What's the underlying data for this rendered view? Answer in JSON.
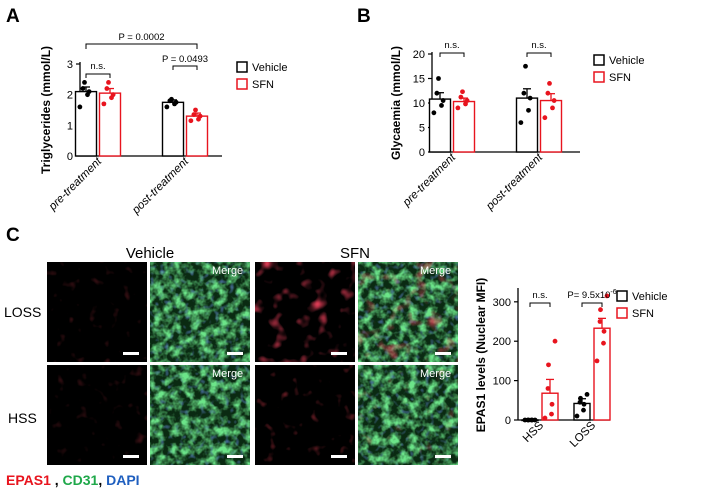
{
  "panels": {
    "a": "A",
    "b": "B",
    "c": "C"
  },
  "legend": {
    "vehicle": "Vehicle",
    "sfn": "SFN"
  },
  "colors": {
    "vehicle": "#000000",
    "sfn": "#e8141e",
    "epas1": "#e8141e",
    "cd31": "#1fa84a",
    "dapi": "#1f5fbf"
  },
  "microscopy": {
    "col_vehicle": "Vehicle",
    "col_sfn": "SFN",
    "row_loss": "LOSS",
    "row_hss": "HSS",
    "merge_label": "Merge",
    "stain_epas1": "EPAS1",
    "stain_cd31": "CD31",
    "stain_dapi": "DAPI",
    "stain_sep1": " , ",
    "stain_sep2": ", "
  },
  "chart_data": [
    {
      "id": "A",
      "type": "bar",
      "ylabel": "Triglycerides (mmol/L)",
      "ylim": [
        0,
        3
      ],
      "yticks": [
        "0",
        "1",
        "2",
        "3"
      ],
      "categories": [
        "pre-treatment",
        "post-treatment"
      ],
      "series": [
        {
          "name": "Vehicle",
          "values": [
            2.1,
            1.75
          ],
          "errors": [
            0.15,
            0.08
          ],
          "points": [
            [
              1.6,
              2.0,
              2.1,
              2.2,
              2.4
            ],
            [
              1.6,
              1.7,
              1.75,
              1.8,
              1.85
            ]
          ]
        },
        {
          "name": "SFN",
          "values": [
            2.05,
            1.3
          ],
          "errors": [
            0.15,
            0.1
          ],
          "points": [
            [
              1.7,
              1.9,
              2.0,
              2.2,
              2.4
            ],
            [
              1.15,
              1.2,
              1.3,
              1.35,
              1.5
            ]
          ]
        }
      ],
      "annotations": [
        {
          "label": "P = 0.0002",
          "between": [
            "pre-treatment.Vehicle",
            "post-treatment.SFN"
          ]
        },
        {
          "label": "n.s.",
          "between": [
            "pre-treatment.Vehicle",
            "pre-treatment.SFN"
          ]
        },
        {
          "label": "P = 0.0493",
          "between": [
            "post-treatment.Vehicle",
            "post-treatment.SFN"
          ]
        }
      ]
    },
    {
      "id": "B",
      "type": "bar",
      "ylabel": "Glycaemia (mmol/L)",
      "ylim": [
        0,
        20
      ],
      "yticks": [
        "0",
        "5",
        "10",
        "15",
        "20"
      ],
      "categories": [
        "pre-treatment",
        "post-treatment"
      ],
      "series": [
        {
          "name": "Vehicle",
          "values": [
            10.8,
            11.0
          ],
          "errors": [
            1.3,
            1.9
          ],
          "points": [
            [
              8.0,
              9.5,
              10.5,
              12.0,
              15.0
            ],
            [
              6.0,
              8.5,
              11.0,
              12.0,
              17.5
            ]
          ]
        },
        {
          "name": "SFN",
          "values": [
            10.3,
            10.5
          ],
          "errors": [
            0.7,
            1.4
          ],
          "points": [
            [
              9.0,
              9.8,
              10.5,
              11.2,
              12.3
            ],
            [
              7.0,
              9.0,
              10.5,
              12.0,
              14.0
            ]
          ]
        }
      ],
      "annotations": [
        {
          "label": "n.s.",
          "between": [
            "pre-treatment.Vehicle",
            "pre-treatment.SFN"
          ]
        },
        {
          "label": "n.s.",
          "between": [
            "post-treatment.Vehicle",
            "post-treatment.SFN"
          ]
        }
      ]
    },
    {
      "id": "C",
      "type": "bar",
      "ylabel": "EPAS1 levels (Nuclear MFI)",
      "ylim": [
        0,
        330
      ],
      "yticks": [
        "0",
        "100",
        "200",
        "300"
      ],
      "categories": [
        "HSS",
        "LOSS"
      ],
      "series": [
        {
          "name": "Vehicle",
          "values": [
            0,
            42
          ],
          "errors": [
            0,
            12
          ],
          "points": [
            [
              0,
              0,
              0,
              0,
              0,
              0
            ],
            [
              10,
              25,
              40,
              45,
              55,
              65
            ]
          ]
        },
        {
          "name": "SFN",
          "values": [
            68,
            233
          ],
          "errors": [
            35,
            25
          ],
          "points": [
            [
              5,
              15,
              40,
              80,
              140,
              200
            ],
            [
              150,
              195,
              225,
              250,
              280,
              315
            ]
          ]
        }
      ],
      "annotations": [
        {
          "label": "n.s.",
          "between": [
            "HSS.Vehicle",
            "HSS.SFN"
          ]
        },
        {
          "label": "P= 9.5x10",
          "superscript": "-6",
          "between": [
            "LOSS.Vehicle",
            "LOSS.SFN"
          ]
        }
      ]
    }
  ]
}
